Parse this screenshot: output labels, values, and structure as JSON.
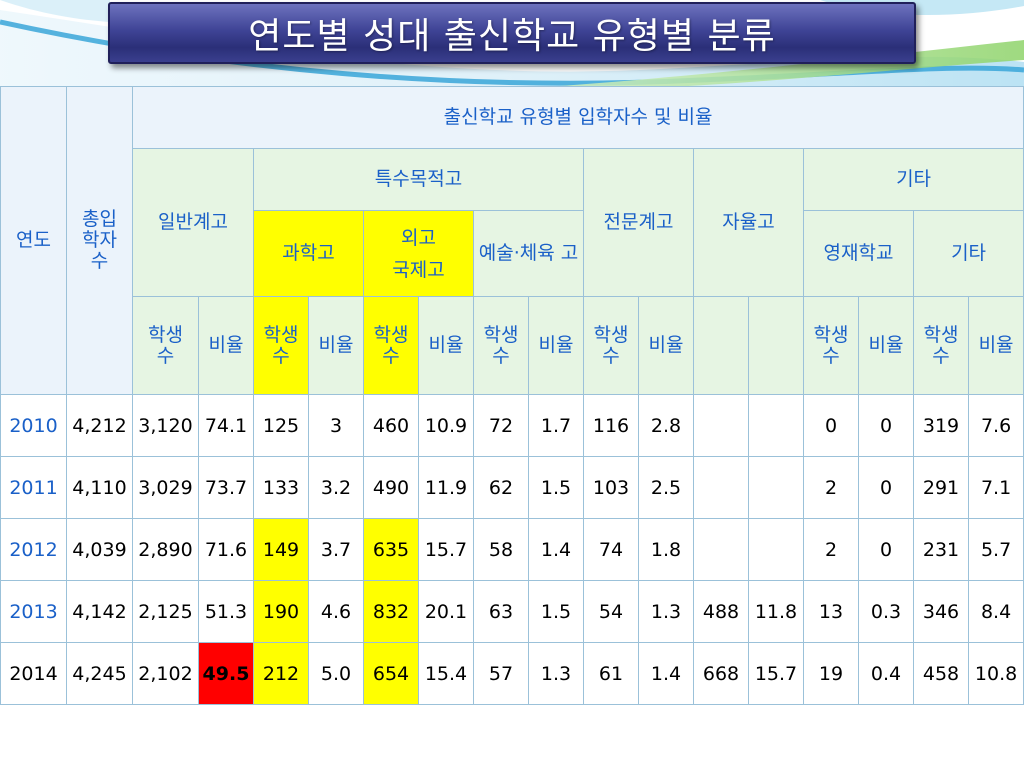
{
  "title": "연도별 성대 출신학교 유형별 분류",
  "colors": {
    "highlight_yellow": "#ffff00",
    "highlight_red": "#ff0000",
    "header_text": "#1a60c8",
    "header_bg_blue": "#ebf3fb",
    "header_bg_green": "#e6f5e3",
    "title_bar": "#3f4496"
  },
  "headers": {
    "year": "연도",
    "total": "총입 학자 수",
    "group": "출신학교 유형별 입학자수 및 비율",
    "general": "일반계고",
    "special": "특수목적고",
    "science": "과학고",
    "foreign1": "외고",
    "foreign2": "국제고",
    "arts": "예술·체육 고",
    "vocational": "전문계고",
    "autonomous": "자율고",
    "other_group": "기타",
    "gifted": "영재학교",
    "other": "기타",
    "students": "학생 수",
    "ratio": "비율"
  },
  "rows": [
    {
      "year": "2010",
      "total": "4,212",
      "gen_n": "3,120",
      "gen_r": "74.1",
      "sci_n": "125",
      "sci_r": "3",
      "for_n": "460",
      "for_r": "10.9",
      "art_n": "72",
      "art_r": "1.7",
      "voc_n": "116",
      "voc_r": "2.8",
      "aut_n": "",
      "aut_r": "",
      "gif_n": "0",
      "gif_r": "0",
      "oth_n": "319",
      "oth_r": "7.6"
    },
    {
      "year": "2011",
      "total": "4,110",
      "gen_n": "3,029",
      "gen_r": "73.7",
      "sci_n": "133",
      "sci_r": "3.2",
      "for_n": "490",
      "for_r": "11.9",
      "art_n": "62",
      "art_r": "1.5",
      "voc_n": "103",
      "voc_r": "2.5",
      "aut_n": "",
      "aut_r": "",
      "gif_n": "2",
      "gif_r": "0",
      "oth_n": "291",
      "oth_r": "7.1"
    },
    {
      "year": "2012",
      "total": "4,039",
      "gen_n": "2,890",
      "gen_r": "71.6",
      "sci_n": "149",
      "sci_r": "3.7",
      "for_n": "635",
      "for_r": "15.7",
      "art_n": "58",
      "art_r": "1.4",
      "voc_n": "74",
      "voc_r": "1.8",
      "aut_n": "",
      "aut_r": "",
      "gif_n": "2",
      "gif_r": "0",
      "oth_n": "231",
      "oth_r": "5.7"
    },
    {
      "year": "2013",
      "total": "4,142",
      "gen_n": "2,125",
      "gen_r": "51.3",
      "sci_n": "190",
      "sci_r": "4.6",
      "for_n": "832",
      "for_r": "20.1",
      "art_n": "63",
      "art_r": "1.5",
      "voc_n": "54",
      "voc_r": "1.3",
      "aut_n": "488",
      "aut_r": "11.8",
      "gif_n": "13",
      "gif_r": "0.3",
      "oth_n": "346",
      "oth_r": "8.4"
    },
    {
      "year": "2014",
      "total": "4,245",
      "gen_n": "2,102",
      "gen_r": "49.5",
      "sci_n": "212",
      "sci_r": "5.0",
      "for_n": "654",
      "for_r": "15.4",
      "art_n": "57",
      "art_r": "1.3",
      "voc_n": "61",
      "voc_r": "1.4",
      "aut_n": "668",
      "aut_r": "15.7",
      "gif_n": "19",
      "gif_r": "0.4",
      "oth_n": "458",
      "oth_r": "10.8"
    }
  ]
}
